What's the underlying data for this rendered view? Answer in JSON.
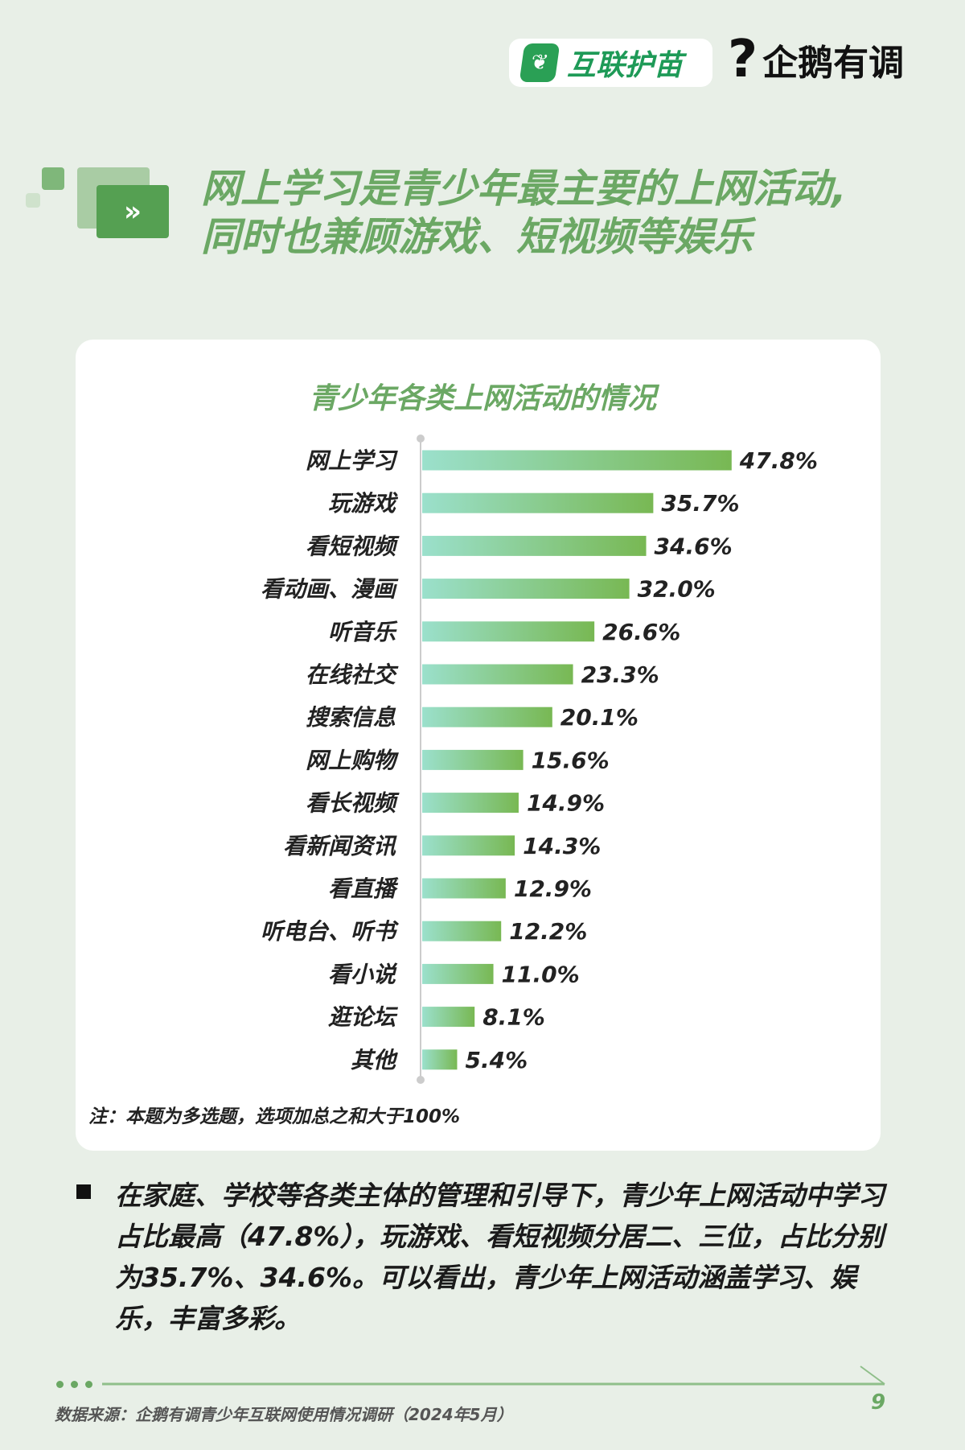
{
  "logos": {
    "hulian": "互联护苗",
    "qq": "企鹅有调"
  },
  "header": {
    "title_line1": "网上学习是青少年最主要的上网活动,",
    "title_line2": "同时也兼顾游戏、短视频等娱乐",
    "icon": "double-chevron-right-icon"
  },
  "colors": {
    "accent": "#6ba864",
    "bar_start": "#9be0cc",
    "bar_end": "#78b853",
    "background": "#e8efe7"
  },
  "chart_data": {
    "type": "bar",
    "orientation": "horizontal",
    "title": "青少年各类上网活动的情况",
    "categories": [
      "网上学习",
      "玩游戏",
      "看短视频",
      "看动画、漫画",
      "听音乐",
      "在线社交",
      "搜索信息",
      "网上购物",
      "看长视频",
      "看新闻资讯",
      "看直播",
      "听电台、听书",
      "看小说",
      "逛论坛",
      "其他"
    ],
    "values": [
      47.8,
      35.7,
      34.6,
      32.0,
      26.6,
      23.3,
      20.1,
      15.6,
      14.9,
      14.3,
      12.9,
      12.2,
      11.0,
      8.1,
      5.4
    ],
    "labels": [
      "47.8%",
      "35.7%",
      "34.6%",
      "32.0%",
      "26.6%",
      "23.3%",
      "20.1%",
      "15.6%",
      "14.9%",
      "14.3%",
      "12.9%",
      "12.2%",
      "11.0%",
      "8.1%",
      "5.4%"
    ],
    "unit": "%",
    "grid": false,
    "note": "注：本题为多选题，选项加总之和大于100%"
  },
  "body": {
    "paragraph": "在家庭、学校等各类主体的管理和引导下，青少年上网活动中学习占比最高（47.8%），玩游戏、看短视频分居二、三位，占比分别为35.7%、34.6%。可以看出，青少年上网活动涵盖学习、娱乐，丰富多彩。"
  },
  "footer": {
    "source": "数据来源：企鹅有调青少年互联网使用情况调研（2024年5月）",
    "page": "9"
  }
}
